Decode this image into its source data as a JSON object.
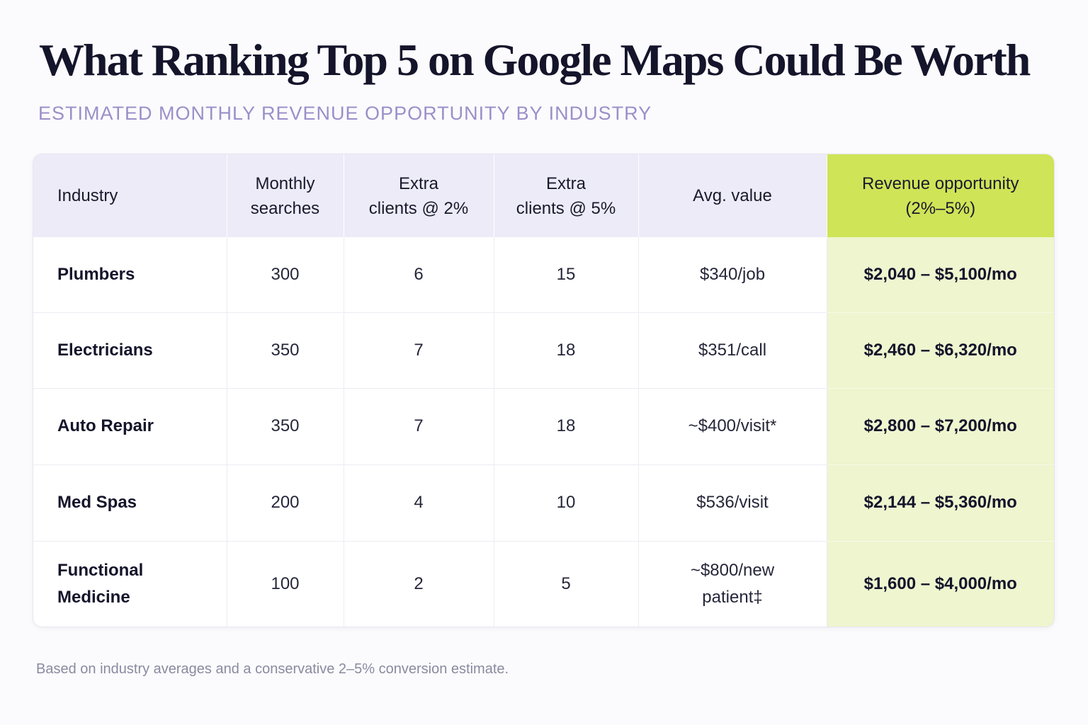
{
  "title": "What Ranking Top 5 on Google Maps Could Be Worth",
  "subtitle": "ESTIMATED MONTHLY REVENUE OPPORTUNITY BY INDUSTRY",
  "footnote": "Based on industry averages and a conservative 2–5% conversion estimate.",
  "colors": {
    "header_bg": "#ecebf7",
    "highlight_header": "#cfe457",
    "highlight_cells": "#eef5cf",
    "subtitle": "#9b8fc9"
  },
  "chart_data": {
    "type": "table",
    "columns": [
      "Industry",
      "Monthly searches",
      "Extra clients @ 2%",
      "Extra clients @ 5%",
      "Avg. value",
      "Revenue opportunity (2%–5%)"
    ],
    "rows": [
      [
        "Plumbers",
        "300",
        "6",
        "15",
        "$340/job",
        "$2,040 – $5,100/mo"
      ],
      [
        "Electricians",
        "350",
        "7",
        "18",
        "$351/call",
        "$2,460 – $6,320/mo"
      ],
      [
        "Auto Repair",
        "350",
        "7",
        "18",
        "~$400/visit*",
        "$2,800 – $7,200/mo"
      ],
      [
        "Med Spas",
        "200",
        "4",
        "10",
        "$536/visit",
        "$2,144 – $5,360/mo"
      ],
      [
        "Functional Medicine",
        "100",
        "2",
        "5",
        "~$800/new\npatient‡",
        "$1,600 – $4,000/mo"
      ]
    ]
  }
}
